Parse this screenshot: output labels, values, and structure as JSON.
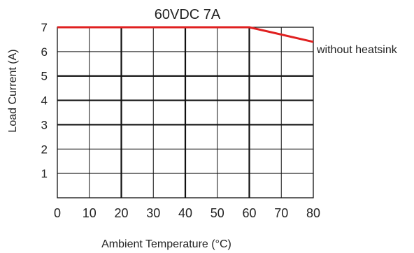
{
  "chart_data": {
    "type": "line",
    "title": "60VDC 7A",
    "xlabel": "Ambient Temperature (°C)",
    "ylabel": "Load Current (A)",
    "xlim": [
      0,
      80
    ],
    "ylim": [
      0,
      7
    ],
    "xticks": [
      0,
      10,
      20,
      30,
      40,
      50,
      60,
      70,
      80
    ],
    "yticks": [
      1,
      2,
      3,
      4,
      5,
      6,
      7
    ],
    "grid": true,
    "series": [
      {
        "name": "without heatsink",
        "color": "#e02020",
        "x": [
          0,
          60,
          80
        ],
        "y": [
          7,
          7,
          6.4
        ]
      }
    ]
  }
}
